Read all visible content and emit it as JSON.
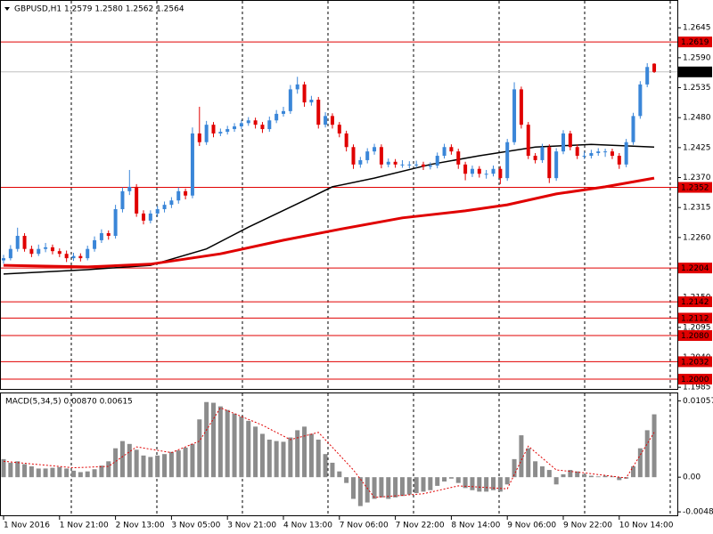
{
  "chart_data": [
    {
      "type": "candlestick",
      "title": "GBPUSD,H1  1.2579 1.2580 1.2562 1.2564",
      "up_color": "#3a86d8",
      "down_color": "#e00000",
      "ylim": [
        1.1982,
        1.2696
      ],
      "yticks": [
        1.2645,
        {
          "value": 1.259,
          "label": "1.2590"
        },
        1.2535,
        {
          "value": 1.248,
          "label": "1.2480"
        },
        1.2425,
        {
          "value": 1.237,
          "label": "1.2370"
        },
        1.2315,
        {
          "value": 1.226,
          "label": "1.2260"
        },
        {
          "value": 1.215,
          "label": "1.2150"
        },
        1.2095,
        {
          "value": 1.204,
          "label": "1.2040"
        },
        1.1985
      ],
      "levels_color": "#e00000",
      "levels": [
        {
          "value": 1.2619,
          "label": "1.2619"
        },
        {
          "value": 1.2352,
          "label": "1.2352"
        },
        {
          "value": 1.2204,
          "label": "1.2204"
        },
        {
          "value": 1.2142,
          "label": "1.2142"
        },
        {
          "value": 1.2112,
          "label": "1.2112"
        },
        {
          "value": 1.208,
          "label": "1.2080"
        },
        {
          "value": 1.2032,
          "label": "1.2032"
        },
        {
          "value": 1.2,
          "label": "1.2000"
        }
      ],
      "current_price": {
        "value": 1.2564,
        "label": "1.2564"
      },
      "candles": [
        [
          1.2218,
          1.2228,
          1.2212,
          1.2222
        ],
        [
          1.2222,
          1.2246,
          1.2218,
          1.2239
        ],
        [
          1.2239,
          1.2278,
          1.2234,
          1.2263
        ],
        [
          1.2263,
          1.2268,
          1.2234,
          1.2239
        ],
        [
          1.2239,
          1.2245,
          1.2224,
          1.223
        ],
        [
          1.223,
          1.2247,
          1.2226,
          1.2239
        ],
        [
          1.2239,
          1.225,
          1.2233,
          1.2242
        ],
        [
          1.2242,
          1.2247,
          1.2229,
          1.2235
        ],
        [
          1.2235,
          1.224,
          1.2224,
          1.223
        ],
        [
          1.223,
          1.2236,
          1.2215,
          1.2222
        ],
        [
          1.2222,
          1.2232,
          1.2217,
          1.2226
        ],
        [
          1.2226,
          1.2231,
          1.2216,
          1.2222
        ],
        [
          1.2222,
          1.2245,
          1.2218,
          1.2239
        ],
        [
          1.2239,
          1.2262,
          1.2234,
          1.2255
        ],
        [
          1.2255,
          1.2275,
          1.225,
          1.2268
        ],
        [
          1.2268,
          1.2273,
          1.2256,
          1.2263
        ],
        [
          1.2263,
          1.232,
          1.2258,
          1.2312
        ],
        [
          1.2312,
          1.2352,
          1.2306,
          1.2345
        ],
        [
          1.2345,
          1.2384,
          1.2338,
          1.2353
        ],
        [
          1.2353,
          1.2358,
          1.2298,
          1.2304
        ],
        [
          1.2304,
          1.231,
          1.2284,
          1.2291
        ],
        [
          1.2291,
          1.231,
          1.2286,
          1.2304
        ],
        [
          1.2304,
          1.2318,
          1.2298,
          1.2312
        ],
        [
          1.2312,
          1.2326,
          1.2306,
          1.232
        ],
        [
          1.232,
          1.2334,
          1.2314,
          1.2328
        ],
        [
          1.2328,
          1.2352,
          1.2322,
          1.2345
        ],
        [
          1.2345,
          1.235,
          1.233,
          1.2337
        ],
        [
          1.2337,
          1.2462,
          1.2332,
          1.2451
        ],
        [
          1.2451,
          1.25,
          1.2428,
          1.2435
        ],
        [
          1.2435,
          1.2474,
          1.243,
          1.2467
        ],
        [
          1.2467,
          1.2472,
          1.2444,
          1.2451
        ],
        [
          1.2451,
          1.246,
          1.2446,
          1.2454
        ],
        [
          1.2454,
          1.2465,
          1.2449,
          1.2459
        ],
        [
          1.2459,
          1.247,
          1.2454,
          1.2464
        ],
        [
          1.2464,
          1.2476,
          1.2459,
          1.247
        ],
        [
          1.247,
          1.2481,
          1.2465,
          1.2475
        ],
        [
          1.2475,
          1.248,
          1.246,
          1.2467
        ],
        [
          1.2467,
          1.2472,
          1.2452,
          1.2459
        ],
        [
          1.2459,
          1.2482,
          1.2454,
          1.2475
        ],
        [
          1.2475,
          1.2494,
          1.247,
          1.2487
        ],
        [
          1.2487,
          1.25,
          1.2482,
          1.2492
        ],
        [
          1.2492,
          1.254,
          1.2487,
          1.2532
        ],
        [
          1.2532,
          1.2555,
          1.2524,
          1.2541
        ],
        [
          1.2541,
          1.2546,
          1.25,
          1.2508
        ],
        [
          1.2508,
          1.252,
          1.2502,
          1.2513
        ],
        [
          1.2513,
          1.2518,
          1.246,
          1.2467
        ],
        [
          1.2467,
          1.249,
          1.2462,
          1.2483
        ],
        [
          1.2483,
          1.2488,
          1.246,
          1.2467
        ],
        [
          1.2467,
          1.2472,
          1.2444,
          1.2451
        ],
        [
          1.2451,
          1.2456,
          1.2418,
          1.2426
        ],
        [
          1.2426,
          1.2431,
          1.2386,
          1.2394
        ],
        [
          1.2394,
          1.2408,
          1.2388,
          1.2402
        ],
        [
          1.2402,
          1.2424,
          1.2396,
          1.2418
        ],
        [
          1.2418,
          1.2432,
          1.2412,
          1.2426
        ],
        [
          1.2426,
          1.2431,
          1.2387,
          1.2394
        ],
        [
          1.2394,
          1.2405,
          1.2389,
          1.2399
        ],
        [
          1.2399,
          1.2404,
          1.2388,
          1.2394
        ],
        [
          1.2394,
          1.2402,
          1.2388,
          1.2394
        ],
        [
          1.2394,
          1.24,
          1.2387,
          1.2394
        ],
        [
          1.2394,
          1.2401,
          1.2388,
          1.2394
        ],
        [
          1.2394,
          1.2399,
          1.2384,
          1.239
        ],
        [
          1.239,
          1.2398,
          1.2385,
          1.2392
        ],
        [
          1.2392,
          1.2416,
          1.2387,
          1.241
        ],
        [
          1.241,
          1.2432,
          1.2405,
          1.2426
        ],
        [
          1.2426,
          1.2431,
          1.2412,
          1.2418
        ],
        [
          1.2418,
          1.2423,
          1.2386,
          1.2394
        ],
        [
          1.2394,
          1.2399,
          1.2365,
          1.2377
        ],
        [
          1.2377,
          1.2392,
          1.2371,
          1.2386
        ],
        [
          1.2386,
          1.2391,
          1.237,
          1.2377
        ],
        [
          1.2377,
          1.2384,
          1.2368,
          1.2377
        ],
        [
          1.2377,
          1.2392,
          1.2372,
          1.2386
        ],
        [
          1.2386,
          1.2391,
          1.2358,
          1.2369
        ],
        [
          1.2369,
          1.2441,
          1.2364,
          1.2435
        ],
        [
          1.2435,
          1.2545,
          1.243,
          1.2532
        ],
        [
          1.2532,
          1.2537,
          1.246,
          1.2467
        ],
        [
          1.2467,
          1.2472,
          1.2404,
          1.241
        ],
        [
          1.241,
          1.2415,
          1.2396,
          1.2402
        ],
        [
          1.2402,
          1.2432,
          1.2397,
          1.2426
        ],
        [
          1.2426,
          1.2431,
          1.236,
          1.2369
        ],
        [
          1.2369,
          1.2424,
          1.2364,
          1.2418
        ],
        [
          1.2418,
          1.2457,
          1.2413,
          1.2451
        ],
        [
          1.2451,
          1.2456,
          1.242,
          1.2426
        ],
        [
          1.2426,
          1.2431,
          1.2404,
          1.241
        ],
        [
          1.241,
          1.2418,
          1.2404,
          1.241
        ],
        [
          1.241,
          1.2421,
          1.2405,
          1.2415
        ],
        [
          1.2415,
          1.2424,
          1.241,
          1.2418
        ],
        [
          1.2418,
          1.2423,
          1.2408,
          1.2418
        ],
        [
          1.2418,
          1.2423,
          1.2404,
          1.241
        ],
        [
          1.241,
          1.2415,
          1.2386,
          1.2394
        ],
        [
          1.2394,
          1.2441,
          1.2389,
          1.2435
        ],
        [
          1.2435,
          1.2489,
          1.243,
          1.2483
        ],
        [
          1.2483,
          1.2547,
          1.2478,
          1.2541
        ],
        [
          1.2541,
          1.258,
          1.2536,
          1.2573
        ],
        [
          1.2579,
          1.258,
          1.2562,
          1.2564
        ]
      ],
      "series": [
        {
          "color": "#000000",
          "x": [
            0,
            12,
            21,
            29,
            35,
            43,
            47,
            53,
            61,
            68,
            76,
            84,
            93
          ],
          "values": [
            1.2193,
            1.2201,
            1.2209,
            1.2239,
            1.2279,
            1.2328,
            1.2353,
            1.2369,
            1.2394,
            1.241,
            1.2426,
            1.2431,
            1.2426
          ]
        },
        {
          "color": "#e00000",
          "x": [
            0,
            12,
            21,
            31,
            40,
            48,
            57,
            66,
            72,
            79,
            86,
            93
          ],
          "values": [
            1.2209,
            1.2206,
            1.2211,
            1.223,
            1.2255,
            1.2275,
            1.2296,
            1.2309,
            1.232,
            1.234,
            1.2353,
            1.2369
          ]
        }
      ]
    },
    {
      "type": "macd",
      "title": "MACD(5,34,5) 0.00870 0.00615",
      "color": "#8c8c8c",
      "ylim": [
        -0.0054,
        0.0116
      ],
      "yticks": [
        0.01057,
        {
          "value": 0,
          "label": "0.00"
        },
        -0.0048
      ],
      "values": [
        0.0025,
        0.002,
        0.0022,
        0.0018,
        0.0015,
        0.0012,
        0.0012,
        0.0013,
        0.0014,
        0.0012,
        0.0009,
        0.0007,
        0.0008,
        0.0011,
        0.0016,
        0.0022,
        0.004,
        0.005,
        0.0046,
        0.0038,
        0.003,
        0.0028,
        0.003,
        0.0032,
        0.0035,
        0.0037,
        0.0041,
        0.0046,
        0.008,
        0.0104,
        0.0103,
        0.0098,
        0.0093,
        0.0088,
        0.0084,
        0.0078,
        0.007,
        0.006,
        0.0052,
        0.005,
        0.0049,
        0.0055,
        0.0065,
        0.007,
        0.006,
        0.0052,
        0.0032,
        0.002,
        0.0008,
        -0.0008,
        -0.003,
        -0.004,
        -0.0035,
        -0.003,
        -0.0028,
        -0.003,
        -0.0028,
        -0.0026,
        -0.0024,
        -0.0022,
        -0.002,
        -0.0018,
        -0.0012,
        -0.0006,
        -0.0002,
        -0.0008,
        -0.0015,
        -0.0018,
        -0.002,
        -0.002,
        -0.0018,
        -0.002,
        -0.001,
        0.0025,
        0.0058,
        0.004,
        0.0022,
        0.0015,
        0.001,
        -0.001,
        0.0004,
        0.001,
        0.0008,
        0.0004,
        0.0002,
        0.0001,
        0.0002,
        0.0001,
        -0.0004,
        -0.0002,
        0.0015,
        0.004,
        0.0065,
        0.0087
      ],
      "signal": {
        "color": "#e00000",
        "x": [
          0,
          10,
          15,
          19,
          24,
          28,
          31,
          37,
          41,
          45,
          50,
          53,
          60,
          65,
          72,
          75,
          79,
          83,
          89,
          93
        ],
        "values": [
          0.0022,
          0.0013,
          0.0015,
          0.0042,
          0.0034,
          0.005,
          0.0096,
          0.0072,
          0.0052,
          0.0062,
          0.001,
          -0.0028,
          -0.0023,
          -0.0012,
          -0.0016,
          0.0043,
          0.001,
          0.0006,
          -0.0001,
          0.0062
        ]
      },
      "xticks": [
        {
          "value": 0,
          "label": "1 Nov 2016"
        },
        {
          "value": 8,
          "label": "1 Nov 21:00"
        },
        {
          "value": 16,
          "label": "2 Nov 13:00"
        },
        {
          "value": 24,
          "label": "3 Nov 05:00"
        },
        {
          "value": 32,
          "label": "3 Nov 21:00"
        },
        {
          "value": 40,
          "label": "4 Nov 13:00"
        },
        {
          "value": 48,
          "label": "7 Nov 06:00"
        },
        {
          "value": 56,
          "label": "7 Nov 22:00"
        },
        {
          "value": 64,
          "label": "8 Nov 14:00"
        },
        {
          "value": 72,
          "label": "9 Nov 06:00"
        },
        {
          "value": 80,
          "label": "9 Nov 22:00"
        },
        {
          "value": 88,
          "label": "10 Nov 14:00"
        }
      ]
    }
  ]
}
